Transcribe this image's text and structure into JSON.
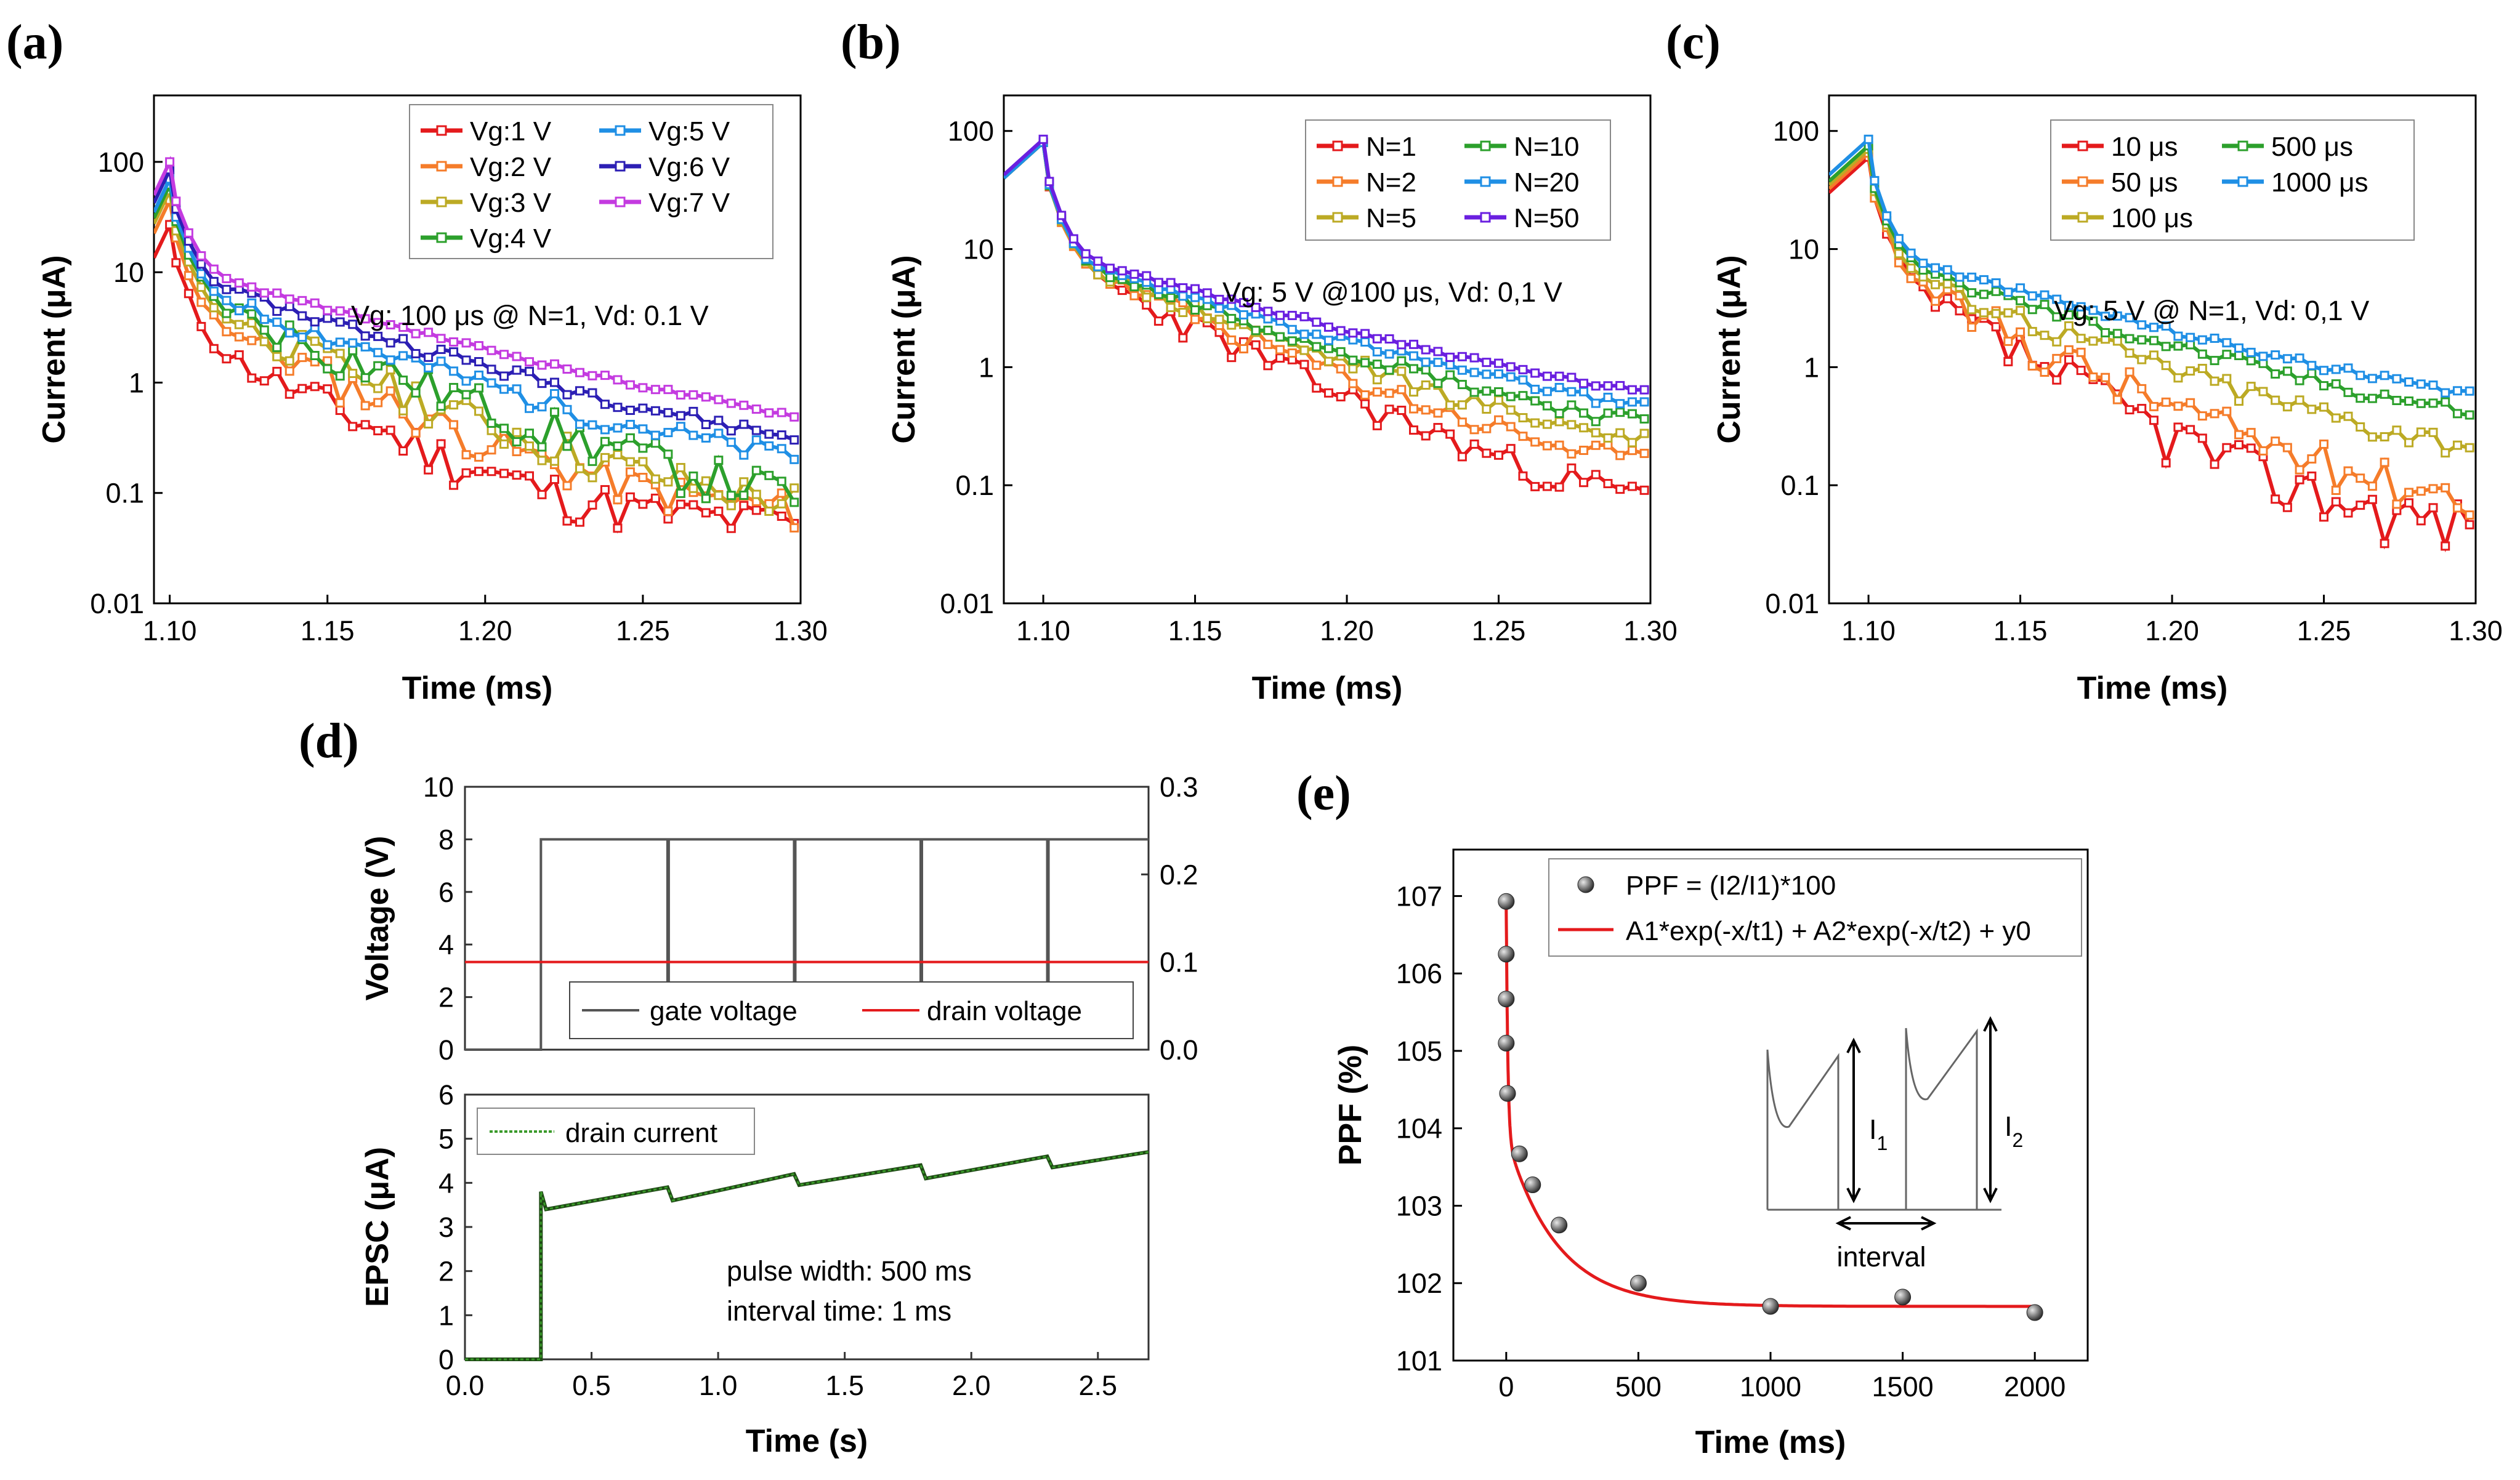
{
  "panel_labels": {
    "a": "(a)",
    "b": "(b)",
    "c": "(c)",
    "d": "(d)",
    "e": "(e)"
  },
  "chart_data": [
    {
      "type": "line",
      "id": "a",
      "title": "",
      "xlabel": "Time (ms)",
      "ylabel": "Current (μA)",
      "xlim": [
        1.095,
        1.3
      ],
      "ylim": [
        0.01,
        400
      ],
      "yscale": "log",
      "xticks": [
        "1.10",
        "1.15",
        "1.20",
        "1.25",
        "1.30"
      ],
      "yticks": [
        "100",
        "10",
        "1",
        "0.1",
        "0.01"
      ],
      "annotation": "Vg: 100 μs @ N=1, Vd: 0.1 V",
      "legend_loc": "top-right",
      "series": [
        {
          "name": "Vg:1 V",
          "color": "#e41a1c",
          "peak": 27,
          "base": 0.05,
          "tau": 0.03,
          "noise": 0.45
        },
        {
          "name": "Vg:2 V",
          "color": "#f57c2a",
          "peak": 45,
          "base": 0.06,
          "tau": 0.033,
          "noise": 0.4
        },
        {
          "name": "Vg:3 V",
          "color": "#bcaa24",
          "peak": 55,
          "base": 0.06,
          "tau": 0.036,
          "noise": 0.4
        },
        {
          "name": "Vg:4 V",
          "color": "#2ca02c",
          "peak": 62,
          "base": 0.05,
          "tau": 0.04,
          "noise": 0.45
        },
        {
          "name": "Vg:5 V",
          "color": "#1f8fe5",
          "peak": 70,
          "base": 0.12,
          "tau": 0.045,
          "noise": 0.25
        },
        {
          "name": "Vg:6 V",
          "color": "#2c1fb4",
          "peak": 85,
          "base": 0.14,
          "tau": 0.05,
          "noise": 0.15
        },
        {
          "name": "Vg:7 V",
          "color": "#c43be0",
          "peak": 100,
          "base": 0.2,
          "tau": 0.055,
          "noise": 0.05
        }
      ]
    },
    {
      "type": "line",
      "id": "b",
      "title": "",
      "xlabel": "Time (ms)",
      "ylabel": "Current (μA)",
      "xlim": [
        1.087,
        1.3
      ],
      "ylim": [
        0.01,
        200
      ],
      "yscale": "log",
      "xticks": [
        "1.10",
        "1.15",
        "1.20",
        "1.25",
        "1.30"
      ],
      "yticks": [
        "100",
        "10",
        "1",
        "0.1",
        "0.01"
      ],
      "annotation": "Vg: 5 V @100 μs, Vd: 0,1 V",
      "legend_loc": "top-right",
      "series": [
        {
          "name": "N=1",
          "color": "#e41a1c",
          "peak": 80,
          "base": 0.05,
          "tau": 0.035,
          "noise": 0.3
        },
        {
          "name": "N=2",
          "color": "#f57c2a",
          "peak": 80,
          "base": 0.09,
          "tau": 0.04,
          "noise": 0.25
        },
        {
          "name": "N=5",
          "color": "#bcaa24",
          "peak": 80,
          "base": 0.13,
          "tau": 0.045,
          "noise": 0.2
        },
        {
          "name": "N=10",
          "color": "#2ca02c",
          "peak": 80,
          "base": 0.17,
          "tau": 0.05,
          "noise": 0.15
        },
        {
          "name": "N=20",
          "color": "#1f8fe5",
          "peak": 80,
          "base": 0.22,
          "tau": 0.055,
          "noise": 0.1
        },
        {
          "name": "N=50",
          "color": "#6a1fe0",
          "peak": 85,
          "base": 0.26,
          "tau": 0.06,
          "noise": 0.06
        }
      ]
    },
    {
      "type": "line",
      "id": "c",
      "title": "",
      "xlabel": "Time (ms)",
      "ylabel": "Current (μA)",
      "xlim": [
        1.087,
        1.3
      ],
      "ylim": [
        0.01,
        200
      ],
      "yscale": "log",
      "xticks": [
        "1.10",
        "1.15",
        "1.20",
        "1.25",
        "1.30"
      ],
      "yticks": [
        "100",
        "10",
        "1",
        "0.1",
        "0.01"
      ],
      "annotation": "Vg: 5 V @ N=1, Vd: 0,1 V",
      "legend_loc": "top-right",
      "series": [
        {
          "name": "10 μs",
          "color": "#e41a1c",
          "peak": 60,
          "base": 0.04,
          "tau": 0.03,
          "noise": 0.5
        },
        {
          "name": "50 μs",
          "color": "#f57c2a",
          "peak": 65,
          "base": 0.06,
          "tau": 0.035,
          "noise": 0.4
        },
        {
          "name": "100 μs",
          "color": "#bcaa24",
          "peak": 70,
          "base": 0.13,
          "tau": 0.045,
          "noise": 0.25
        },
        {
          "name": "500 μs",
          "color": "#2ca02c",
          "peak": 75,
          "base": 0.2,
          "tau": 0.055,
          "noise": 0.15
        },
        {
          "name": "1000 μs",
          "color": "#1f8fe5",
          "peak": 85,
          "base": 0.23,
          "tau": 0.06,
          "noise": 0.08
        }
      ]
    },
    {
      "type": "line",
      "id": "d-top",
      "xlabel": "",
      "ylabel": "Voltage (V)",
      "xlim": [
        0,
        2.7
      ],
      "ylim": [
        0,
        10
      ],
      "y2lim": [
        0,
        0.3
      ],
      "yticks": [
        "0",
        "2",
        "4",
        "6",
        "8",
        "10"
      ],
      "y2ticks": [
        "0.0",
        "0.1",
        "0.2",
        "0.3"
      ],
      "gate_low": 0,
      "gate_high": 8,
      "gate_start": 0.3,
      "gate_dips": [
        0.8,
        1.3,
        1.8,
        2.3
      ],
      "drain_voltage": 0.1,
      "legend": [
        "gate voltage",
        "drain voltage"
      ],
      "colors": {
        "gate": "#555555",
        "drain": "#e41a1c"
      }
    },
    {
      "type": "line",
      "id": "d-bottom",
      "xlabel": "Time (s)",
      "ylabel": "EPSC (μA)",
      "xlim": [
        0,
        2.7
      ],
      "ylim": [
        0,
        6
      ],
      "xticks": [
        "0.0",
        "0.5",
        "1.0",
        "1.5",
        "2.0",
        "2.5"
      ],
      "yticks": [
        "0",
        "1",
        "2",
        "3",
        "4",
        "5",
        "6"
      ],
      "legend": [
        "drain current"
      ],
      "annotations": [
        "pulse width: 500 ms",
        "interval time: 1 ms"
      ],
      "current": {
        "baseline": 0,
        "pulse_start": 0.3,
        "points": [
          [
            0.3,
            3.8
          ],
          [
            0.32,
            3.4
          ],
          [
            0.8,
            3.9
          ],
          [
            0.82,
            3.6
          ],
          [
            1.3,
            4.2
          ],
          [
            1.32,
            3.95
          ],
          [
            1.8,
            4.4
          ],
          [
            1.82,
            4.1
          ],
          [
            2.3,
            4.6
          ],
          [
            2.32,
            4.35
          ],
          [
            2.7,
            4.7
          ]
        ]
      },
      "colors": {
        "current": "#3a9a2a",
        "current_dark": "#1f4a15"
      }
    },
    {
      "type": "scatter",
      "id": "e",
      "xlabel": "Time (ms)",
      "ylabel": "PPF (%)",
      "xlim": [
        -200,
        2200
      ],
      "ylim": [
        101,
        107.6
      ],
      "xticks": [
        "0",
        "500",
        "1000",
        "1500",
        "2000"
      ],
      "yticks": [
        "101",
        "102",
        "103",
        "104",
        "105",
        "106",
        "107"
      ],
      "points": [
        [
          0,
          106.93
        ],
        [
          0,
          106.25
        ],
        [
          0,
          105.67
        ],
        [
          0,
          105.1
        ],
        [
          5,
          104.45
        ],
        [
          50,
          103.67
        ],
        [
          100,
          103.27
        ],
        [
          200,
          102.75
        ],
        [
          500,
          102.0
        ],
        [
          1000,
          101.7
        ],
        [
          1500,
          101.82
        ],
        [
          2000,
          101.62
        ]
      ],
      "fit": {
        "A1": 3.0,
        "t1": 6,
        "A2": 2.2,
        "t2": 190,
        "y0": 101.7
      },
      "inset": {
        "labels": [
          "I1",
          "I2",
          "interval"
        ]
      },
      "colors": {
        "fit": "#e41a1c",
        "points": "#555555"
      }
    }
  ],
  "legend_e": {
    "points_label": "PPF = (I2/I1)*100",
    "fit_label": "A1*exp(-x/t1) + A2*exp(-x/t2) + y0"
  }
}
